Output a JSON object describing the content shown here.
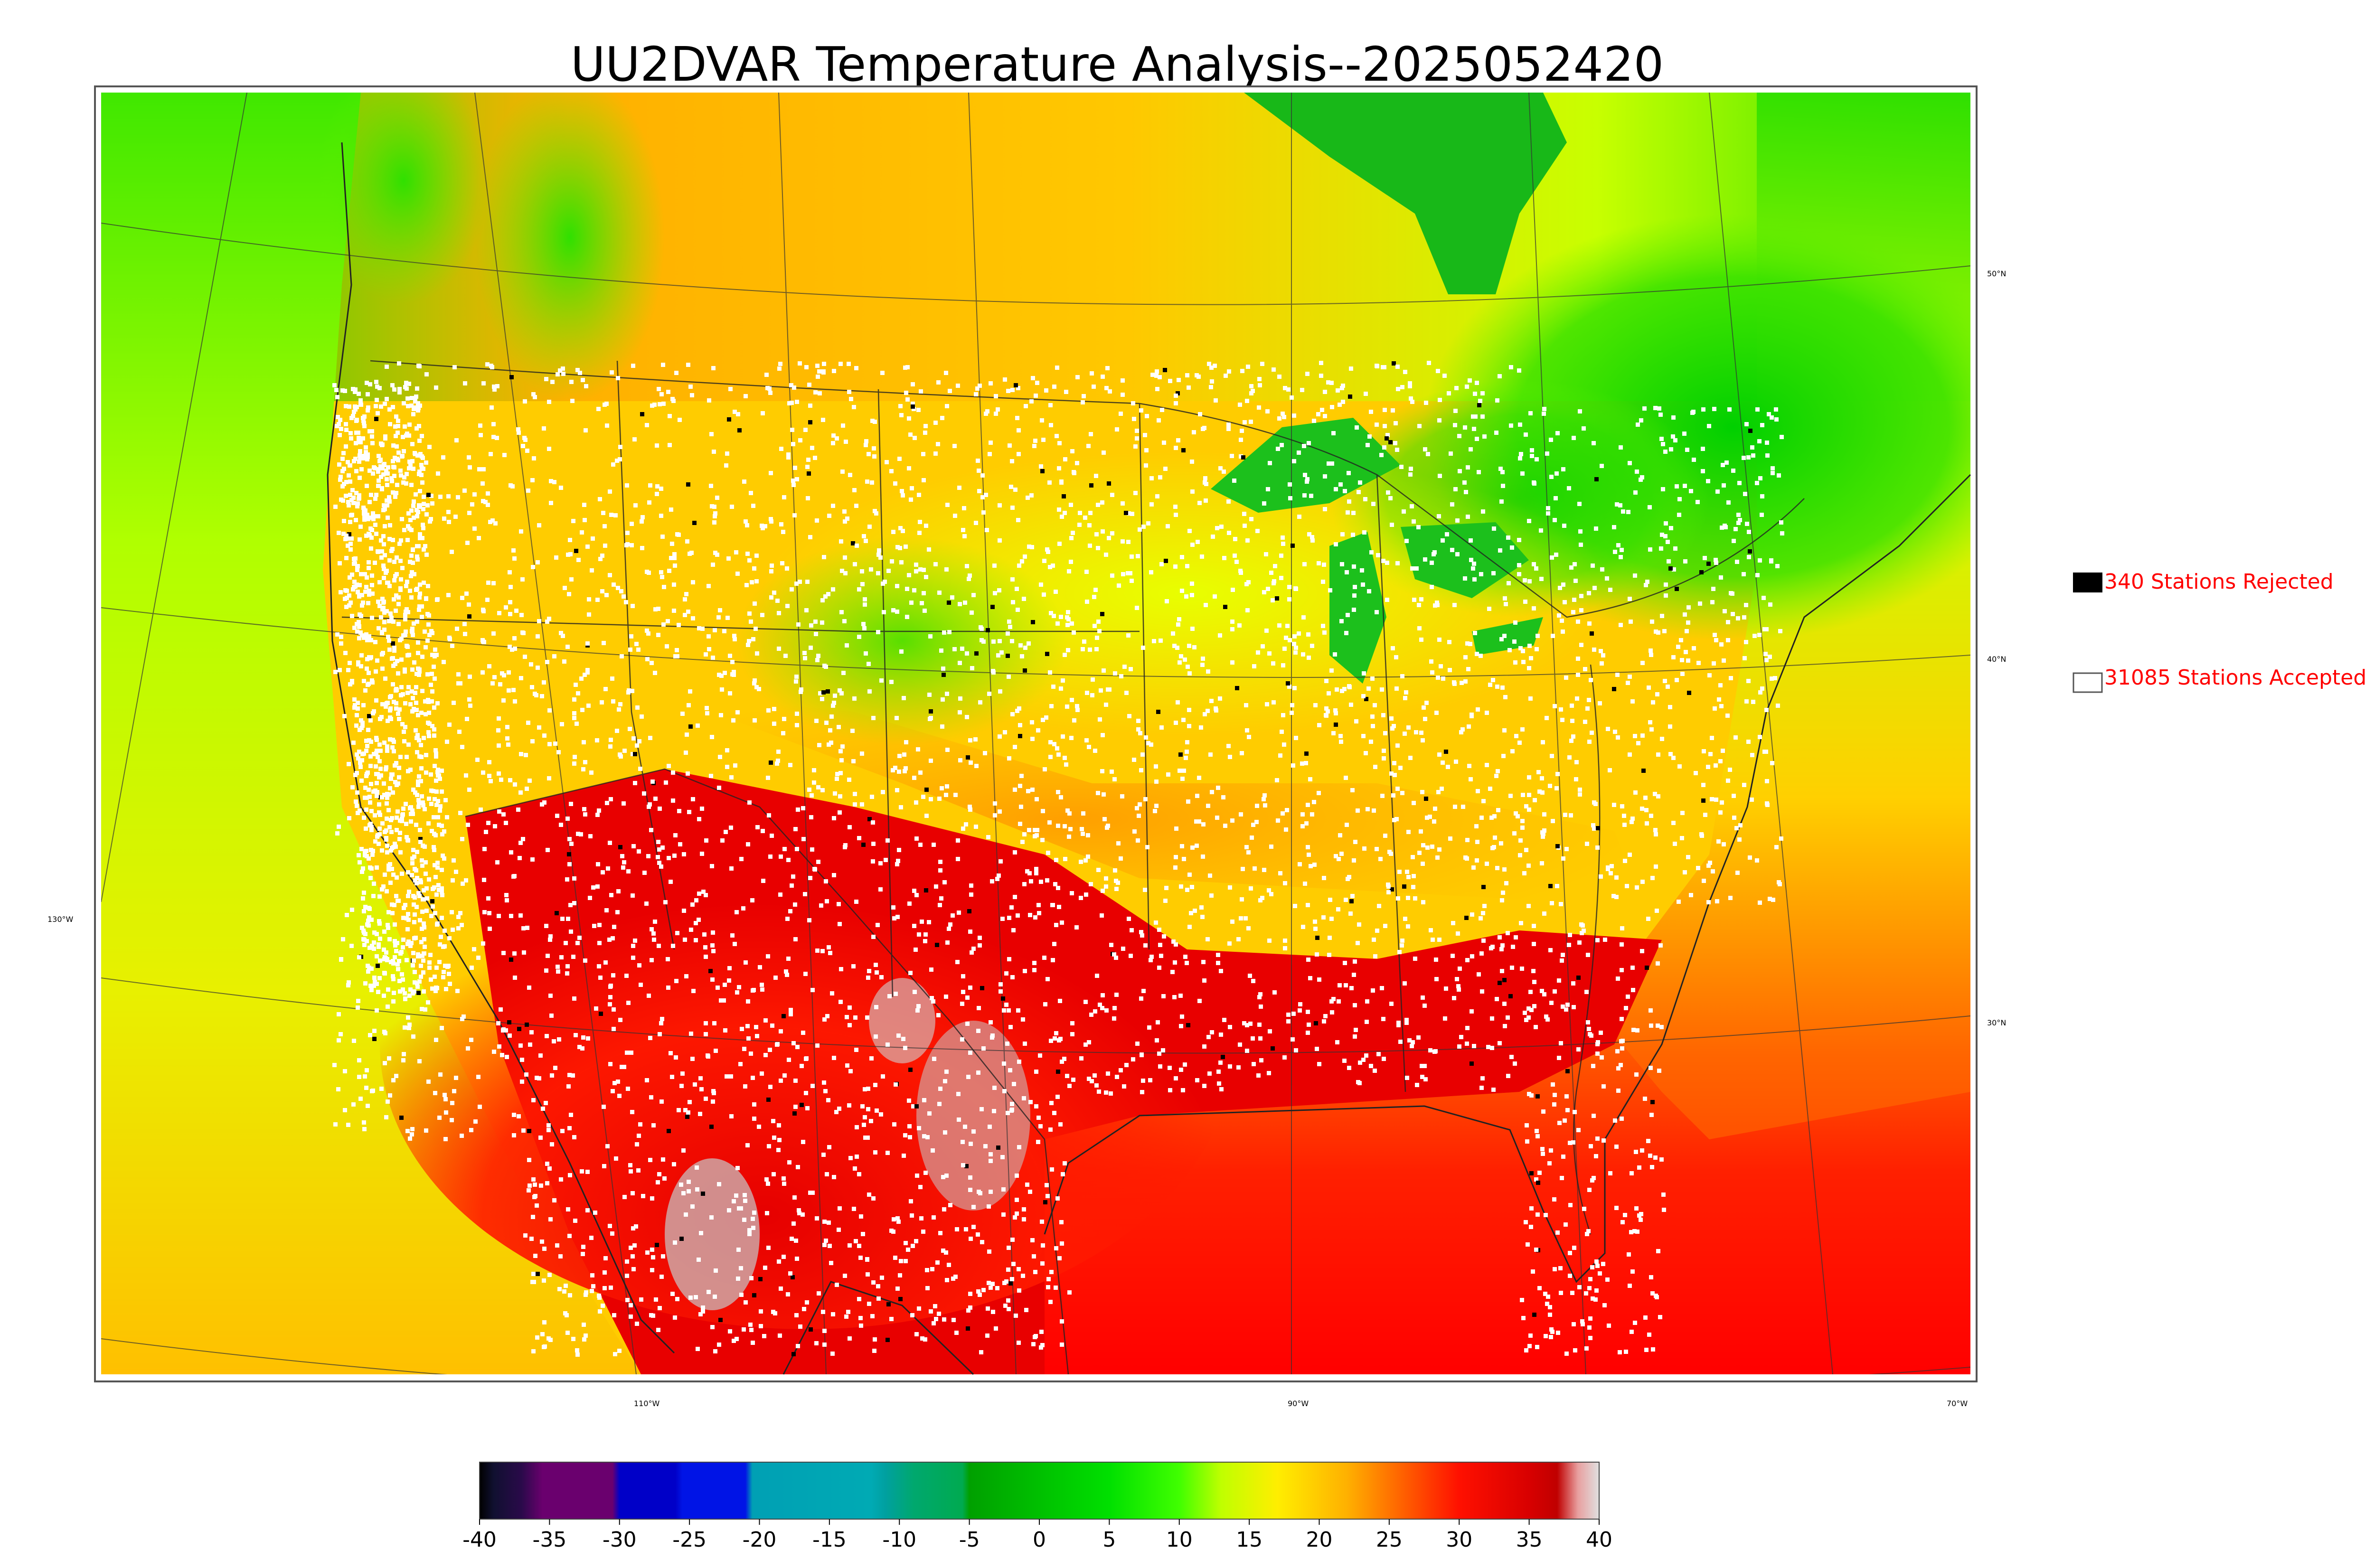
{
  "title": "UU2DVAR Temperature Analysis--2025052420",
  "legend": {
    "rejected": {
      "label": "340 Stations Rejected",
      "color": "#000000"
    },
    "accepted": {
      "label": "31085 Stations Accepted",
      "color": "#ffffff"
    }
  },
  "latitude_labels": [
    "50°N",
    "40°N",
    "30°N"
  ],
  "longitude_labels": [
    "130°W",
    "110°W",
    "90°W",
    "70°W"
  ],
  "colorbar": {
    "tick_labels": [
      "-40",
      "-35",
      "-30",
      "-25",
      "-20",
      "-15",
      "-10",
      "-5",
      "0",
      "5",
      "10",
      "15",
      "20",
      "25",
      "30",
      "35",
      "40"
    ],
    "min": -40,
    "max": 40,
    "stops": [
      {
        "value": -40,
        "color": "#000000"
      },
      {
        "value": -39,
        "color": "#101030"
      },
      {
        "value": -37,
        "color": "#2a0a4a"
      },
      {
        "value": -35.5,
        "color": "#6a006e"
      },
      {
        "value": -30.5,
        "color": "#6a006e"
      },
      {
        "value": -30,
        "color": "#0000c8"
      },
      {
        "value": -26,
        "color": "#0000c8"
      },
      {
        "value": -25.5,
        "color": "#0014e6"
      },
      {
        "value": -21,
        "color": "#0014e6"
      },
      {
        "value": -20.5,
        "color": "#00a0b4"
      },
      {
        "value": -12,
        "color": "#00aab4"
      },
      {
        "value": -11,
        "color": "#00a0a0"
      },
      {
        "value": -9,
        "color": "#00a86e"
      },
      {
        "value": -5.5,
        "color": "#00aa50"
      },
      {
        "value": -5,
        "color": "#00a000"
      },
      {
        "value": 0,
        "color": "#00c000"
      },
      {
        "value": 5,
        "color": "#00e000"
      },
      {
        "value": 10,
        "color": "#40ff00"
      },
      {
        "value": 13,
        "color": "#c0ff00"
      },
      {
        "value": 17,
        "color": "#ffee00"
      },
      {
        "value": 22,
        "color": "#ffb000"
      },
      {
        "value": 26,
        "color": "#ff6000"
      },
      {
        "value": 30,
        "color": "#ff1000"
      },
      {
        "value": 35,
        "color": "#d80000"
      },
      {
        "value": 37,
        "color": "#c00000"
      },
      {
        "value": 38.5,
        "color": "#e8a0a0"
      },
      {
        "value": 40,
        "color": "#e0e0e0"
      }
    ]
  }
}
